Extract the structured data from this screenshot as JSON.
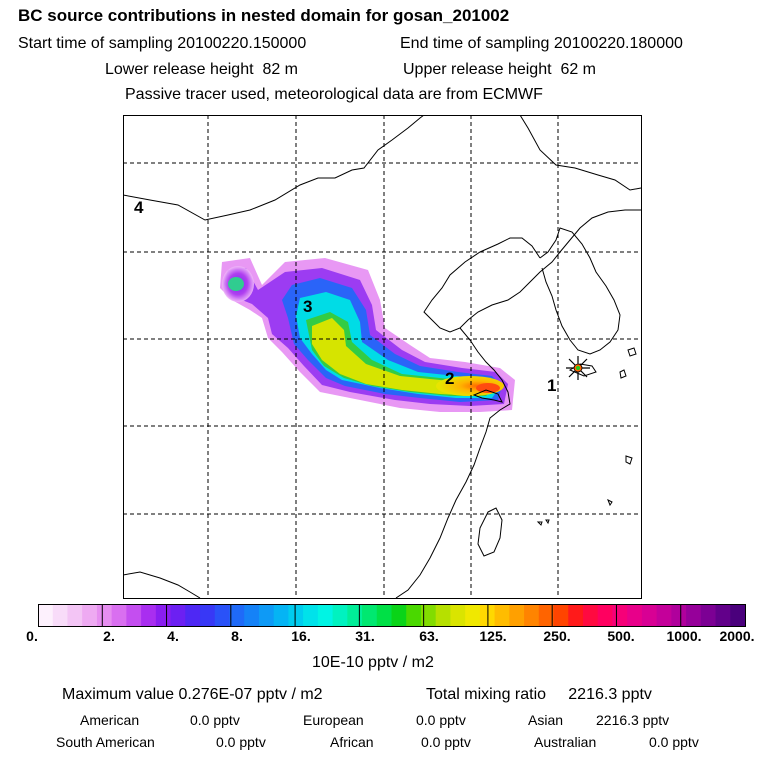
{
  "header": {
    "title": "BC  source contributions in nested domain for gosan_201002",
    "start_label": "Start time of sampling",
    "start_value": "20100220.150000",
    "end_label": "End time of sampling",
    "end_value": "20100220.180000",
    "lower_label": "Lower release height",
    "lower_value": "82 m",
    "upper_label": "Upper release height",
    "upper_value": "62 m",
    "note": "Passive tracer used, meteorological data are from ECMWF"
  },
  "map": {
    "region_labels": [
      "1",
      "2",
      "3",
      "4"
    ],
    "station_marker": "star-marker"
  },
  "colorbar": {
    "tick_labels": [
      "0.",
      "2.",
      "4.",
      "8.",
      "16.",
      "31.",
      "63.",
      "125.",
      "250.",
      "500.",
      "1000.",
      "2000."
    ],
    "colors": [
      "#fdf1fd",
      "#f8dcf9",
      "#f3c5f5",
      "#eeaaf2",
      "#e68ef0",
      "#d96ff0",
      "#c44ef0",
      "#a92ef0",
      "#8a1ef0",
      "#6c20f2",
      "#4e28f4",
      "#3838f6",
      "#2a52f8",
      "#1f6af8",
      "#1582f7",
      "#0e9af6",
      "#05b4f4",
      "#00ccef",
      "#00e2ea",
      "#00f4e4",
      "#00f2c0",
      "#00ee98",
      "#00e870",
      "#00e046",
      "#0ad418",
      "#4ad800",
      "#82dc00",
      "#b6e000",
      "#dae400",
      "#f0e800",
      "#ffd800",
      "#ffbc00",
      "#ffa000",
      "#ff8400",
      "#ff6400",
      "#ff4400",
      "#ff1a1a",
      "#ff0a40",
      "#ff0060",
      "#f60078",
      "#e8008a",
      "#d80094",
      "#c4009a",
      "#b0009c",
      "#96009a",
      "#7c0094",
      "#62008a",
      "#4a007c"
    ],
    "unit": "10E-10 pptv / m2"
  },
  "summary": {
    "max_label": "Maximum value",
    "max_value": "0.276E-07 pptv / m2",
    "total_label": "Total mixing ratio",
    "total_value": "2216.3 pptv",
    "american_label": "American",
    "american_value": "0.0 pptv",
    "european_label": "European",
    "european_value": "0.0 pptv",
    "asian_label": "Asian",
    "asian_value": "2216.3 pptv",
    "south_american_label": "South American",
    "south_american_value": "0.0 pptv",
    "african_label": "African",
    "african_value": "0.0 pptv",
    "australian_label": "Australian",
    "australian_value": "0.0 pptv"
  }
}
